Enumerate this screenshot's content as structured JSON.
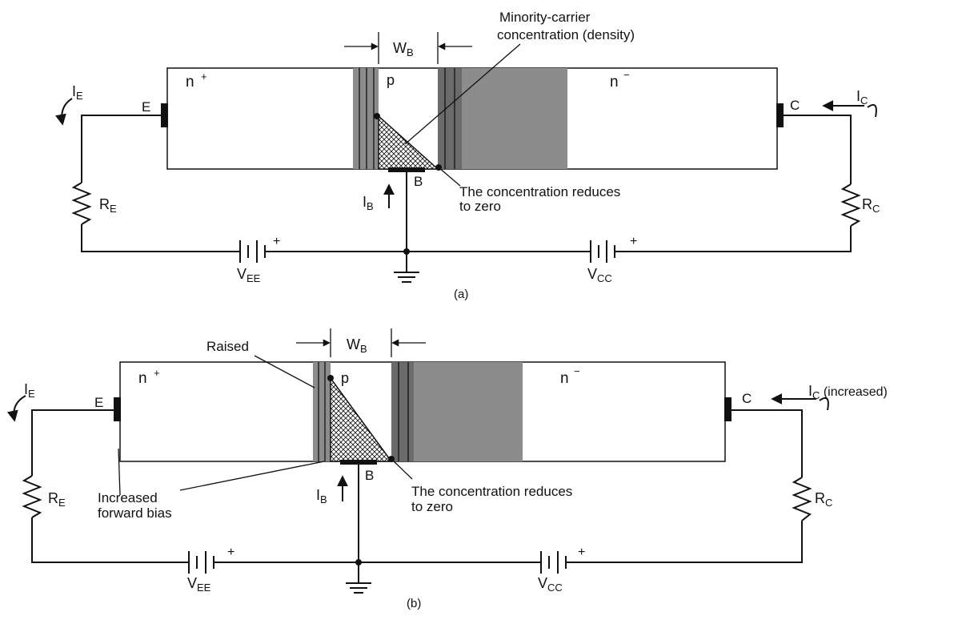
{
  "colors": {
    "ink": "#111111",
    "depletion": "#8c8c8c",
    "depletion_dark": "#5a5a5a",
    "background": "#ffffff"
  },
  "panel_a": {
    "caption": "(a)",
    "region_emitter": "n",
    "region_emitter_sup": "+",
    "region_base": "p",
    "region_collector": "n",
    "region_collector_sup": "−",
    "width_label": "W",
    "width_label_sub": "B",
    "density_label_line1": "Minority-carrier",
    "density_label_line2": "concentration (density)",
    "zero_label_line1": "The concentration reduces",
    "zero_label_line2": "to zero",
    "terminal_e": "E",
    "terminal_b": "B",
    "terminal_c": "C",
    "current_e": "I",
    "current_e_sub": "E",
    "current_b": "I",
    "current_b_sub": "B",
    "current_c": "I",
    "current_c_sub": "C",
    "res_e": "R",
    "res_e_sub": "E",
    "res_c": "R",
    "res_c_sub": "C",
    "bat_e": "V",
    "bat_e_sub": "EE",
    "bat_c": "V",
    "bat_c_sub": "CC",
    "plus": "+"
  },
  "panel_b": {
    "caption": "(b)",
    "region_emitter": "n",
    "region_emitter_sup": "+",
    "region_base": "p",
    "region_collector": "n",
    "region_collector_sup": "−",
    "width_label": "W",
    "width_label_sub": "B",
    "raised_label": "Raised",
    "zero_label_line1": "The concentration reduces",
    "zero_label_line2": "to zero",
    "bias_label_line1": "Increased",
    "bias_label_line2": "forward bias",
    "terminal_e": "E",
    "terminal_b": "B",
    "terminal_c": "C",
    "current_e": "I",
    "current_e_sub": "E",
    "current_b": "I",
    "current_b_sub": "B",
    "current_c": "I",
    "current_c_sub": "C",
    "current_c_note": " (increased)",
    "res_e": "R",
    "res_e_sub": "E",
    "res_c": "R",
    "res_c_sub": "C",
    "bat_e": "V",
    "bat_e_sub": "EE",
    "bat_c": "V",
    "bat_c_sub": "CC",
    "plus": "+"
  }
}
